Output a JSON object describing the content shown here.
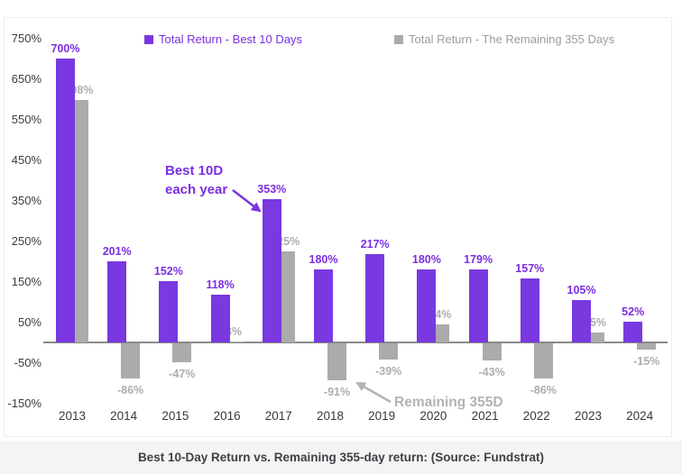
{
  "caption": "Best 10-Day Return vs. Remaining 355-day return: (Source: Fundstrat)",
  "legend": {
    "series1_label": "Total Return - Best 10 Days",
    "series2_label": "Total Return - The Remaining 355 Days"
  },
  "annotations": {
    "best10d": "Best 10D\neach year",
    "remaining": "Remaining 355D"
  },
  "colors": {
    "purple_bar": "#7938E0",
    "purple_text": "#7B2FE0",
    "gray_bar": "#ABABAB",
    "gray_text": "#ADADAD",
    "annotation_gray": "#B3B3B3",
    "axis": "#8A8A8A"
  },
  "chart_data": {
    "type": "bar",
    "title": "Best 10-Day Return vs. Remaining 355-day return: (Source: Fundstrat)",
    "categories": [
      "2013",
      "2014",
      "2015",
      "2016",
      "2017",
      "2018",
      "2019",
      "2020",
      "2021",
      "2022",
      "2023",
      "2024"
    ],
    "series": [
      {
        "name": "Total Return - Best 10 Days",
        "color": "#7938E0",
        "values": [
          700,
          201,
          152,
          118,
          353,
          180,
          217,
          180,
          179,
          157,
          105,
          52
        ],
        "labels": [
          "700%",
          "201%",
          "152%",
          "118%",
          "353%",
          "180%",
          "217%",
          "180%",
          "179%",
          "157%",
          "105%",
          "52%"
        ]
      },
      {
        "name": "Total Return - The Remaining 355 Days",
        "color": "#ABABAB",
        "values": [
          598,
          -86,
          -47,
          3,
          225,
          -91,
          -39,
          44,
          -43,
          -86,
          25,
          -15
        ],
        "labels": [
          "598%",
          "-86%",
          "-47%",
          "3%",
          "225%",
          "-91%",
          "-39%",
          "44%",
          "-43%",
          "-86%",
          "25%",
          "-15%"
        ]
      }
    ],
    "yticks": [
      "750%",
      "650%",
      "550%",
      "450%",
      "350%",
      "250%",
      "150%",
      "50%",
      "-50%",
      "-150%"
    ],
    "ylim": [
      -150,
      750
    ],
    "grid": false,
    "legend_position": "top",
    "annotations": [
      {
        "text": "Best 10D each year",
        "target": "2017 best-10-days bar"
      },
      {
        "text": "Remaining 355D",
        "target": "2018 remaining-355-days bar"
      }
    ]
  }
}
